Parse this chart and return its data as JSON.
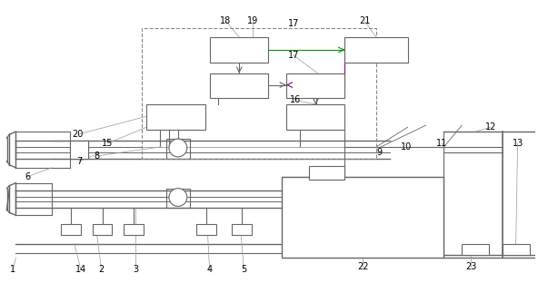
{
  "bg_color": "#ffffff",
  "lc": "#666666",
  "green_color": "#009900",
  "magenta_color": "#880088",
  "fig_width": 5.92,
  "fig_height": 3.23,
  "dpi": 100
}
